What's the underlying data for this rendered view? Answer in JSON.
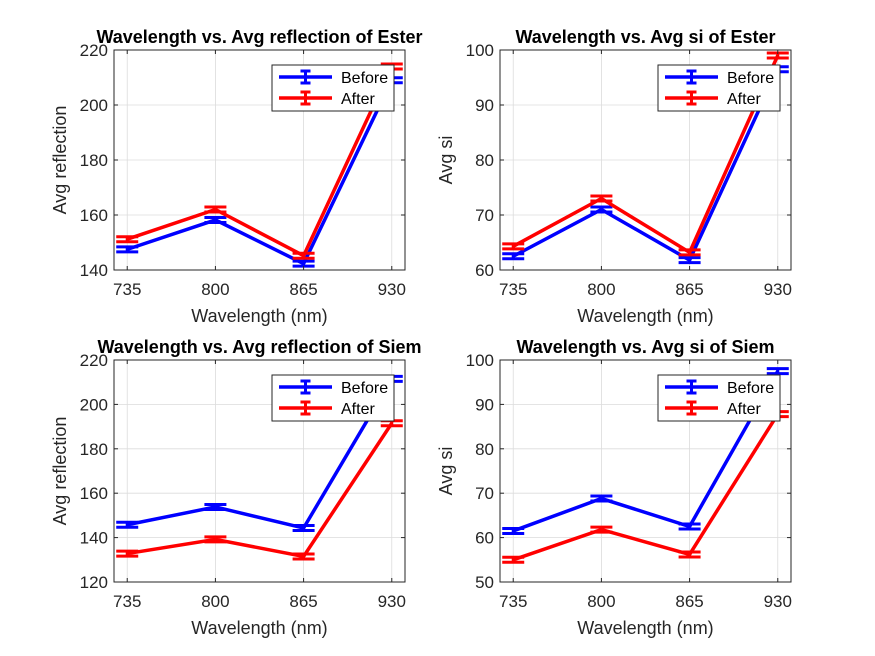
{
  "chart_data": [
    {
      "type": "line",
      "title": "Wavelength vs. Avg reflection of Ester",
      "xlabel": "Wavelength (nm)",
      "ylabel": "Avg reflection",
      "x": [
        735,
        800,
        865,
        930
      ],
      "xlim": [
        735,
        930
      ],
      "ylim": [
        140,
        220
      ],
      "yticks": [
        140,
        160,
        180,
        200,
        220
      ],
      "grid": true,
      "legend": "top-right",
      "series": [
        {
          "name": "Before",
          "color": "#0000ff",
          "values": [
            147.5,
            158.2,
            142.3,
            209.0
          ]
        },
        {
          "name": "After",
          "color": "#ff0000",
          "values": [
            151.2,
            162.0,
            145.2,
            214.0
          ]
        }
      ]
    },
    {
      "type": "line",
      "title": "Wavelength vs. Avg si of Ester",
      "xlabel": "Wavelength (nm)",
      "ylabel": "Avg si",
      "x": [
        735,
        800,
        865,
        930
      ],
      "xlim": [
        735,
        930
      ],
      "ylim": [
        60,
        100
      ],
      "yticks": [
        60,
        70,
        80,
        90,
        100
      ],
      "grid": true,
      "legend": "top-right",
      "series": [
        {
          "name": "Before",
          "color": "#0000ff",
          "values": [
            62.5,
            71.0,
            61.8,
            96.5
          ]
        },
        {
          "name": "After",
          "color": "#ff0000",
          "values": [
            64.3,
            73.0,
            63.2,
            99.0
          ]
        }
      ]
    },
    {
      "type": "line",
      "title": "Wavelength vs. Avg reflection of Siem",
      "xlabel": "Wavelength (nm)",
      "ylabel": "Avg reflection",
      "x": [
        735,
        800,
        865,
        930
      ],
      "xlim": [
        735,
        930
      ],
      "ylim": [
        120,
        220
      ],
      "yticks": [
        120,
        140,
        160,
        180,
        200,
        220
      ],
      "grid": true,
      "legend": "top-right",
      "series": [
        {
          "name": "Before",
          "color": "#0000ff",
          "values": [
            145.8,
            153.8,
            144.3,
            211.5
          ]
        },
        {
          "name": "After",
          "color": "#ff0000",
          "values": [
            132.8,
            139.2,
            131.5,
            191.5
          ]
        }
      ]
    },
    {
      "type": "line",
      "title": "Wavelength vs. Avg si of Siem",
      "xlabel": "Wavelength (nm)",
      "ylabel": "Avg si",
      "x": [
        735,
        800,
        865,
        930
      ],
      "xlim": [
        735,
        930
      ],
      "ylim": [
        50,
        100
      ],
      "yticks": [
        50,
        60,
        70,
        80,
        90,
        100
      ],
      "grid": true,
      "legend": "top-right",
      "series": [
        {
          "name": "Before",
          "color": "#0000ff",
          "values": [
            61.5,
            68.8,
            62.5,
            97.5
          ]
        },
        {
          "name": "After",
          "color": "#ff0000",
          "values": [
            55.0,
            61.8,
            56.2,
            87.8
          ]
        }
      ]
    }
  ]
}
